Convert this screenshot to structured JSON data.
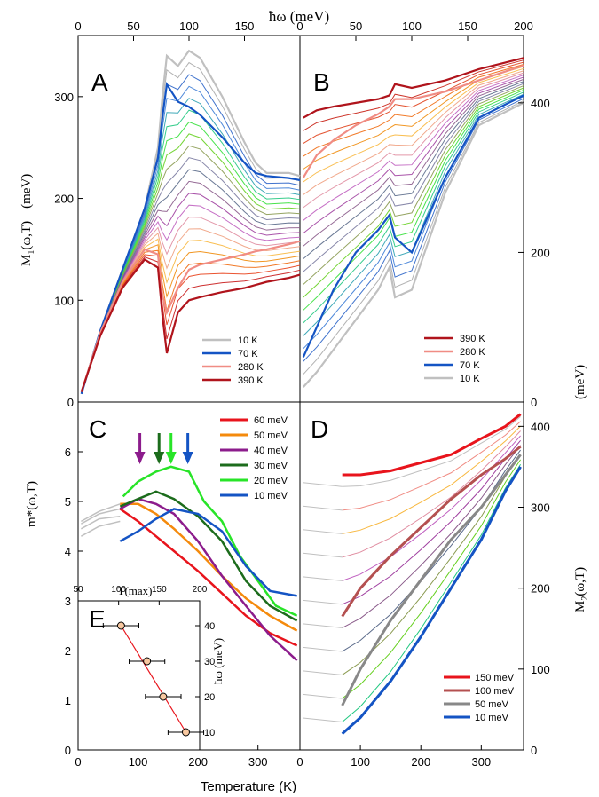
{
  "figure": {
    "top_axis_label": "ħω (meV)",
    "bottom_axis_label": "Temperature (K)",
    "m1_label": "M",
    "m1_sub": "1",
    "m1_arg": "(ω,T)",
    "m1_unit": "(meV)",
    "m2_label": "M",
    "m2_sub": "2",
    "m2_arg": "(ω,T)",
    "m2_unit": "(meV)",
    "mstar_label": "m*(ω,T)",
    "inset_top_label": "T(max)",
    "inset_right_label": "ħω (meV)"
  },
  "colors": {
    "gray": "#c0c0c0",
    "red": "#e8141c",
    "dark_red": "#b0141c",
    "orange": "#f48a0c",
    "purple": "#8c1c8c",
    "dark_green": "#1c6c1c",
    "green": "#28e428",
    "blue": "#1454c4",
    "salmon": "#f08c84",
    "brick": "#b45050",
    "mid_gray": "#888888"
  },
  "chart_data": [
    {
      "panel": "A",
      "type": "line",
      "xlabel": "ħω (meV)",
      "ylabel": "M1(ω,T) (meV)",
      "xlim": [
        0,
        200
      ],
      "ylim": [
        0,
        360
      ],
      "xticks": [
        0,
        50,
        100,
        150
      ],
      "yticks": [
        0,
        100,
        200,
        300
      ],
      "legend": [
        "10 K",
        "70 K",
        "280 K",
        "390 K"
      ],
      "legend_position": "bottom-right",
      "series": [
        {
          "name": "10 K",
          "x": [
            3,
            20,
            40,
            60,
            72,
            76,
            80,
            90,
            100,
            110,
            130,
            150,
            160,
            170,
            190,
            200
          ],
          "y": [
            8,
            70,
            130,
            190,
            250,
            300,
            340,
            330,
            345,
            338,
            300,
            255,
            235,
            225,
            225,
            222
          ]
        },
        {
          "name": "70 K",
          "x": [
            3,
            20,
            40,
            60,
            72,
            76,
            80,
            90,
            100,
            110,
            130,
            150,
            160,
            170,
            190,
            200
          ],
          "y": [
            8,
            70,
            130,
            190,
            240,
            280,
            312,
            295,
            290,
            282,
            260,
            235,
            225,
            222,
            220,
            218
          ]
        },
        {
          "name": "280 K",
          "x": [
            3,
            20,
            40,
            60,
            72,
            76,
            80,
            90,
            100,
            110,
            130,
            150,
            160,
            170,
            190,
            200
          ],
          "y": [
            10,
            68,
            118,
            150,
            145,
            105,
            88,
            112,
            130,
            135,
            140,
            145,
            148,
            150,
            155,
            158
          ]
        },
        {
          "name": "390 K",
          "x": [
            3,
            20,
            40,
            60,
            72,
            76,
            80,
            90,
            100,
            110,
            130,
            150,
            160,
            170,
            190,
            200
          ],
          "y": [
            10,
            65,
            112,
            140,
            132,
            85,
            48,
            88,
            100,
            103,
            108,
            112,
            115,
            118,
            122,
            125
          ]
        }
      ]
    },
    {
      "panel": "B",
      "type": "line",
      "xlabel": "ħω (meV)",
      "ylabel": "M2(ω,T) (meV)",
      "xlim": [
        0,
        200
      ],
      "ylim": [
        0,
        490
      ],
      "xticks": [
        0,
        50,
        100,
        150,
        200
      ],
      "yticks": [
        0,
        200,
        400
      ],
      "legend": [
        "390 K",
        "280 K",
        "70 K",
        "10 K"
      ],
      "legend_position": "bottom-right",
      "series": [
        {
          "name": "390 K",
          "x": [
            3,
            15,
            30,
            50,
            70,
            80,
            85,
            100,
            130,
            160,
            200
          ],
          "y": [
            380,
            390,
            395,
            400,
            405,
            410,
            425,
            420,
            430,
            445,
            460
          ]
        },
        {
          "name": "280 K",
          "x": [
            3,
            15,
            30,
            50,
            70,
            80,
            85,
            100,
            130,
            160,
            200
          ],
          "y": [
            300,
            330,
            350,
            370,
            385,
            395,
            405,
            405,
            415,
            430,
            450
          ]
        },
        {
          "name": "70 K",
          "x": [
            3,
            15,
            30,
            50,
            70,
            80,
            85,
            100,
            130,
            160,
            200
          ],
          "y": [
            60,
            100,
            150,
            200,
            230,
            250,
            220,
            200,
            300,
            380,
            410
          ]
        },
        {
          "name": "10 K",
          "x": [
            3,
            15,
            30,
            50,
            70,
            80,
            85,
            100,
            130,
            160,
            200
          ],
          "y": [
            20,
            40,
            70,
            110,
            150,
            180,
            140,
            150,
            280,
            370,
            400
          ]
        }
      ]
    },
    {
      "panel": "C",
      "type": "line",
      "xlabel": "Temperature (K)",
      "ylabel": "m*(ω,T)",
      "xlim": [
        0,
        370
      ],
      "ylim": [
        0,
        7
      ],
      "xticks": [
        0,
        100,
        200,
        300
      ],
      "yticks": [
        0,
        1,
        2,
        3,
        4,
        5,
        6
      ],
      "legend": [
        "60 meV",
        "50 meV",
        "40 meV",
        "30 meV",
        "20 meV",
        "10 meV"
      ],
      "legend_position": "top-right",
      "arrows_at_T": [
        103,
        135,
        155,
        183
      ],
      "series": [
        {
          "name": "60 meV",
          "x": [
            70,
            100,
            130,
            160,
            200,
            240,
            280,
            320,
            365
          ],
          "y": [
            4.85,
            4.6,
            4.3,
            4.0,
            3.6,
            3.15,
            2.7,
            2.35,
            2.1
          ]
        },
        {
          "name": "50 meV",
          "x": [
            70,
            100,
            130,
            160,
            200,
            240,
            280,
            320,
            365
          ],
          "y": [
            4.95,
            4.95,
            4.75,
            4.45,
            4.0,
            3.5,
            3.05,
            2.7,
            2.4
          ]
        },
        {
          "name": "40 meV",
          "x": [
            70,
            100,
            130,
            160,
            200,
            240,
            280,
            320,
            365
          ],
          "y": [
            4.85,
            5.05,
            4.95,
            4.75,
            4.2,
            3.5,
            2.9,
            2.3,
            1.8
          ]
        },
        {
          "name": "30 meV",
          "x": [
            70,
            100,
            130,
            160,
            200,
            240,
            280,
            320,
            365
          ],
          "y": [
            4.9,
            5.05,
            5.2,
            5.05,
            4.7,
            4.2,
            3.4,
            2.9,
            2.6
          ]
        },
        {
          "name": "20 meV",
          "x": [
            75,
            100,
            130,
            155,
            185,
            210,
            240,
            270,
            300,
            330,
            365
          ],
          "y": [
            5.1,
            5.4,
            5.6,
            5.7,
            5.6,
            5.0,
            4.6,
            3.9,
            3.4,
            2.9,
            2.7
          ]
        },
        {
          "name": "10 meV",
          "x": [
            70,
            100,
            130,
            160,
            200,
            240,
            280,
            320,
            365
          ],
          "y": [
            4.2,
            4.4,
            4.65,
            4.85,
            4.75,
            4.4,
            3.7,
            3.2,
            3.1
          ]
        }
      ]
    },
    {
      "panel": "D",
      "type": "line",
      "xlabel": "Temperature (K)",
      "ylabel": "M2(ω,T) (meV)",
      "xlim": [
        0,
        370
      ],
      "ylim": [
        0,
        430
      ],
      "xticks": [
        0,
        100,
        200,
        300
      ],
      "yticks": [
        0,
        100,
        200,
        300,
        400
      ],
      "legend": [
        "150 meV",
        "100 meV",
        "50 meV",
        "10 meV"
      ],
      "legend_position": "bottom-right",
      "series": [
        {
          "name": "150 meV",
          "x": [
            70,
            100,
            150,
            200,
            250,
            300,
            340,
            365
          ],
          "y": [
            340,
            340,
            345,
            355,
            365,
            385,
            400,
            415
          ]
        },
        {
          "name": "100 meV",
          "x": [
            70,
            100,
            150,
            200,
            250,
            300,
            340,
            365
          ],
          "y": [
            165,
            200,
            240,
            275,
            310,
            340,
            360,
            375
          ]
        },
        {
          "name": "50 meV",
          "x": [
            70,
            100,
            150,
            200,
            250,
            300,
            340,
            365
          ],
          "y": [
            55,
            100,
            160,
            210,
            260,
            300,
            340,
            365
          ]
        },
        {
          "name": "10 meV",
          "x": [
            70,
            100,
            150,
            200,
            250,
            300,
            340,
            365
          ],
          "y": [
            20,
            40,
            85,
            140,
            200,
            260,
            320,
            350
          ]
        }
      ]
    },
    {
      "panel": "E",
      "type": "scatter",
      "xlabel": "T(max)",
      "ylabel": "ħω (meV)",
      "xlim": [
        50,
        200
      ],
      "ylim": [
        5,
        47
      ],
      "xticks": [
        50,
        100,
        150,
        200
      ],
      "yticks": [
        10,
        20,
        30,
        40
      ],
      "points": [
        {
          "x": 103,
          "y": 40,
          "xerr": 22
        },
        {
          "x": 135,
          "y": 30,
          "xerr": 22
        },
        {
          "x": 155,
          "y": 20,
          "xerr": 22
        },
        {
          "x": 183,
          "y": 10,
          "xerr": 22
        }
      ]
    }
  ]
}
